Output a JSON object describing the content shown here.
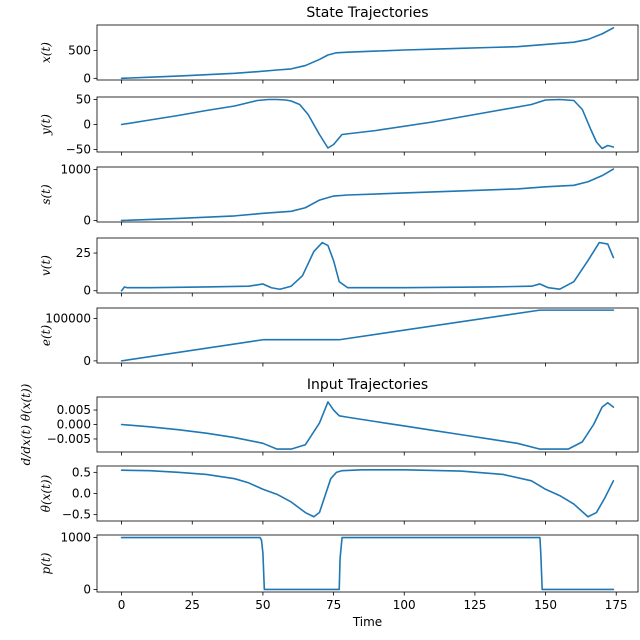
{
  "chart_data": [
    {
      "type": "line",
      "title": "State Trajectories",
      "ylabel": "x(t)",
      "ylim": [
        -30,
        960
      ],
      "yticks": [
        0,
        500
      ],
      "ytick_labels": [
        "0",
        "500"
      ],
      "x": [
        0,
        10,
        20,
        30,
        40,
        48,
        55,
        60,
        65,
        70,
        73,
        76,
        80,
        90,
        100,
        110,
        120,
        130,
        140,
        150,
        155,
        160,
        165,
        170,
        174
      ],
      "values": [
        0,
        20,
        40,
        65,
        90,
        120,
        150,
        170,
        230,
        340,
        420,
        460,
        470,
        490,
        510,
        525,
        540,
        555,
        570,
        610,
        630,
        650,
        700,
        800,
        910
      ]
    },
    {
      "type": "line",
      "ylabel": "y(t)",
      "ylim": [
        -55,
        55
      ],
      "yticks": [
        -50,
        0,
        50
      ],
      "ytick_labels": [
        "−50",
        "0",
        "50"
      ],
      "x": [
        0,
        10,
        20,
        30,
        40,
        48,
        52,
        55,
        58,
        60,
        63,
        66,
        70,
        73,
        75,
        78,
        90,
        110,
        130,
        145,
        150,
        155,
        160,
        163,
        166,
        168,
        170,
        172,
        174
      ],
      "values": [
        0,
        9,
        18,
        28,
        37,
        48,
        50,
        50,
        49,
        47,
        40,
        20,
        -20,
        -47,
        -40,
        -20,
        -12,
        5,
        25,
        40,
        49,
        50,
        48,
        30,
        -10,
        -35,
        -48,
        -42,
        -45
      ]
    },
    {
      "type": "line",
      "ylabel": "s(t)",
      "ylim": [
        -30,
        1050
      ],
      "yticks": [
        0,
        1000
      ],
      "ytick_labels": [
        "0",
        "1000"
      ],
      "x": [
        0,
        20,
        40,
        50,
        60,
        65,
        70,
        75,
        80,
        100,
        120,
        140,
        150,
        160,
        165,
        170,
        174
      ],
      "values": [
        0,
        40,
        90,
        140,
        180,
        250,
        400,
        480,
        500,
        540,
        580,
        620,
        660,
        690,
        760,
        880,
        1010
      ]
    },
    {
      "type": "line",
      "ylabel": "v(t)",
      "ylim": [
        -1.5,
        35
      ],
      "yticks": [
        0,
        25
      ],
      "ytick_labels": [
        "0",
        "25"
      ],
      "x": [
        0,
        1,
        2,
        10,
        30,
        45,
        50,
        53,
        56,
        60,
        64,
        68,
        71,
        73,
        75,
        77,
        80,
        100,
        130,
        145,
        148,
        151,
        155,
        160,
        165,
        169,
        172,
        174
      ],
      "values": [
        0,
        2.5,
        2,
        2,
        2.5,
        3,
        4.5,
        2,
        1,
        3,
        10,
        26,
        32,
        30,
        20,
        6,
        2,
        2,
        2.5,
        3,
        4.5,
        2,
        1,
        6,
        20,
        32,
        31,
        22
      ]
    },
    {
      "type": "line",
      "ylabel": "e(t)",
      "ylim": [
        -5000,
        125000
      ],
      "yticks": [
        0,
        100000
      ],
      "ytick_labels": [
        "0",
        "100000"
      ],
      "x": [
        0,
        50,
        77,
        148,
        174
      ],
      "values": [
        0,
        50000,
        50000,
        120000,
        120000
      ]
    },
    {
      "type": "line",
      "title": "Input Trajectories",
      "ylabel": "d/dx(t) θ(x(t))",
      "ylim": [
        -0.0095,
        0.0095
      ],
      "yticks": [
        -0.005,
        0,
        0.005
      ],
      "ytick_labels": [
        "−0.005",
        "0.000",
        "0.005"
      ],
      "x": [
        0,
        10,
        20,
        30,
        40,
        50,
        55,
        60,
        65,
        70,
        73,
        75,
        77,
        80,
        90,
        100,
        110,
        120,
        130,
        140,
        148,
        152,
        158,
        163,
        167,
        170,
        172,
        174
      ],
      "values": [
        0,
        -0.0008,
        -0.0018,
        -0.003,
        -0.0045,
        -0.0065,
        -0.0085,
        -0.0085,
        -0.007,
        0.0005,
        0.0078,
        0.005,
        0.003,
        0.0025,
        0.001,
        -0.0005,
        -0.002,
        -0.0035,
        -0.005,
        -0.0065,
        -0.0085,
        -0.0085,
        -0.0085,
        -0.006,
        0.0,
        0.006,
        0.0075,
        0.006
      ]
    },
    {
      "type": "line",
      "ylabel": "θ(x(t))",
      "ylim": [
        -0.65,
        0.65
      ],
      "yticks": [
        -0.5,
        0,
        0.5
      ],
      "ytick_labels": [
        "−0.5",
        "0.0",
        "0.5"
      ],
      "x": [
        0,
        10,
        20,
        30,
        40,
        45,
        50,
        55,
        60,
        65,
        68,
        70,
        72,
        74,
        76,
        78,
        85,
        100,
        120,
        135,
        145,
        150,
        155,
        160,
        165,
        168,
        171,
        174
      ],
      "values": [
        0.55,
        0.54,
        0.5,
        0.45,
        0.35,
        0.25,
        0.1,
        -0.02,
        -0.2,
        -0.45,
        -0.55,
        -0.45,
        -0.05,
        0.35,
        0.5,
        0.54,
        0.56,
        0.56,
        0.53,
        0.45,
        0.3,
        0.1,
        -0.05,
        -0.25,
        -0.55,
        -0.45,
        -0.1,
        0.3
      ]
    },
    {
      "type": "line",
      "ylabel": "p(t)",
      "xlabel": "Time",
      "ylim": [
        -50,
        1050
      ],
      "yticks": [
        0,
        1000
      ],
      "ytick_labels": [
        "0",
        "1000"
      ],
      "xticks": [
        0,
        25,
        50,
        75,
        100,
        125,
        150,
        175
      ],
      "xtick_labels": [
        "0",
        "25",
        "50",
        "75",
        "100",
        "125",
        "150",
        "175"
      ],
      "x": [
        0,
        49,
        49.5,
        50,
        50.5,
        77,
        77.3,
        78,
        148,
        148.3,
        148.8,
        174
      ],
      "values": [
        1000,
        1000,
        950,
        700,
        0,
        0,
        600,
        1000,
        1000,
        700,
        0,
        0
      ]
    }
  ]
}
